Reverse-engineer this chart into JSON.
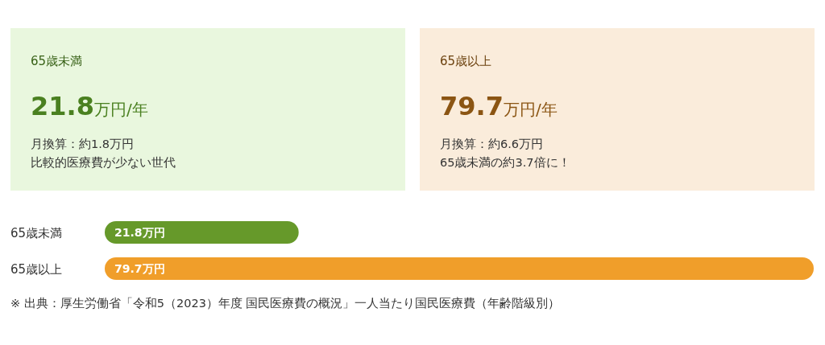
{
  "chart_data": [
    {
      "type": "other",
      "title": "65歳未満",
      "subtitle": "21.8万円/年",
      "annotations": [
        "月換算：約1.8万円",
        "比較的医療費が少ない世代"
      ],
      "color": "#4a8020"
    },
    {
      "type": "other",
      "title": "65歳以上",
      "subtitle": "79.7万円/年",
      "annotations": [
        "月換算：約6.6万円",
        "65歳未満の約3.7倍に！"
      ],
      "color": "#8b5513"
    },
    {
      "type": "bar",
      "orientation": "horizontal",
      "categories": [
        "65歳未満",
        "65歳以上"
      ],
      "values": [
        21.8,
        79.7
      ],
      "colors": [
        "#66992a",
        "#f09e2a"
      ],
      "value_labels": [
        "21.8万円",
        "79.7万円"
      ],
      "annotations": [
        "※ 出典：厚生労働省「令和5（2023）年度 国民医療費の概況」一人当たり国民医療費（年齢階級別）"
      ]
    }
  ]
}
